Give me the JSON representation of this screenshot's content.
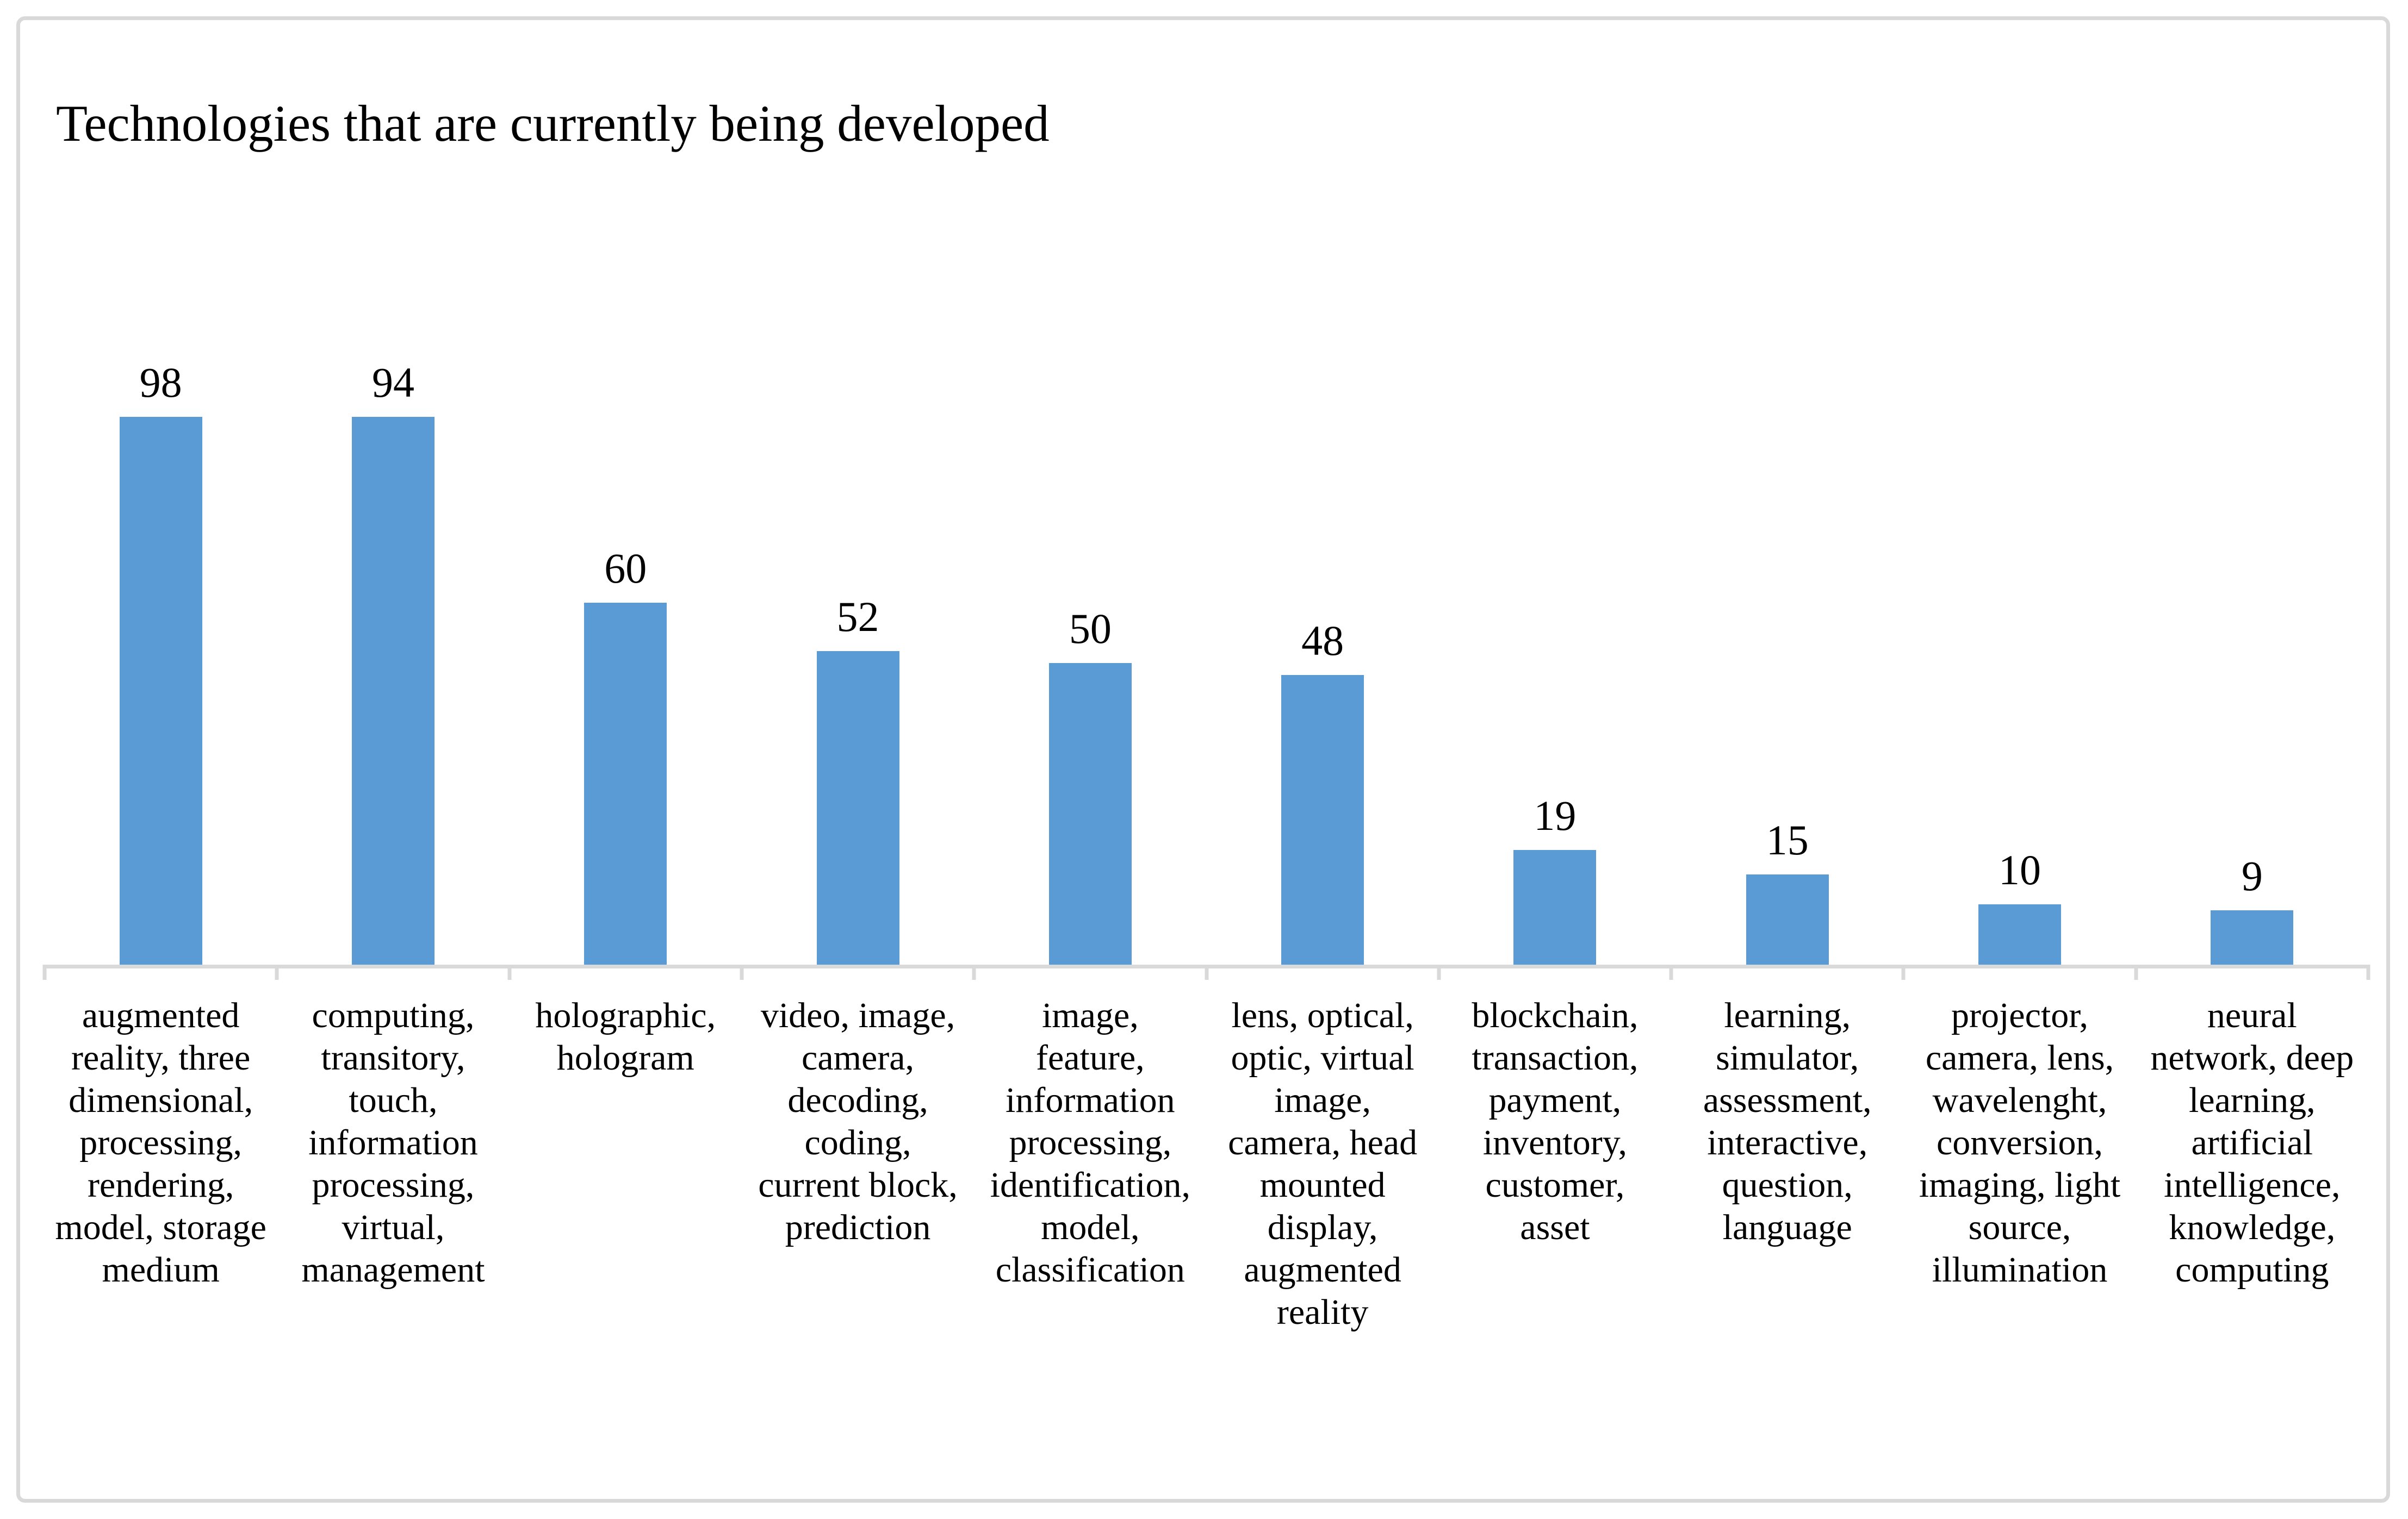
{
  "title": "Technologies that are currently being developed",
  "colors": {
    "bar": "#5B9BD5",
    "axis": "#D9D9D9",
    "frame_border": "#D9D9D9",
    "text": "#000000",
    "background": "#FFFFFF"
  },
  "chart_data": {
    "type": "bar",
    "title": "Technologies that are currently being developed",
    "values": [
      98,
      94,
      60,
      52,
      50,
      48,
      19,
      15,
      10,
      9
    ],
    "categories": [
      "augmented reality, three dimensional, processing, rendering, model, storage medium",
      "computing, transitory, touch, information processing, virtual, management",
      "holographic, hologram",
      "video, image, camera, decoding, coding, current block, prediction",
      "image, feature, information processing, identification, model, classification",
      "lens, optical, optic, virtual image, camera, head mounted display, augmented reality",
      "blockchain, transaction, payment, inventory, customer, asset",
      "learning, simulator, assessment, interactive, question, language",
      "projector, camera, lens, wavelenght, conversion, imaging, light source, illumination",
      "neural network, deep learning, artificial intelligence, knowledge, computing"
    ],
    "categories_display": [
      "augmented\nreality, three\ndimensional,\nprocessing,\nrendering,\nmodel, storage\nmedium",
      "computing,\ntransitory,\ntouch,\ninformation\nprocessing,\nvirtual,\nmanagement",
      "holographic,\nhologram",
      "video, image,\ncamera,\ndecoding,\ncoding,\ncurrent block,\nprediction",
      "image,\nfeature,\ninformation\nprocessing,\nidentification,\nmodel,\nclassification",
      "lens, optical,\noptic, virtual\nimage,\ncamera, head\nmounted\ndisplay,\naugmented\nreality",
      "blockchain,\ntransaction,\npayment,\ninventory,\ncustomer,\nasset",
      "learning,\nsimulator,\nassessment,\ninteractive,\nquestion,\nlanguage",
      "projector,\ncamera, lens,\nwavelenght,\nconversion,\nimaging, light\nsource,\nillumination",
      "neural\nnetwork, deep\nlearning,\nartificial\nintelligence,\nknowledge,\ncomputing"
    ],
    "xlabel": "",
    "ylabel": "",
    "ylim": [
      0,
      100
    ],
    "grid": false,
    "legend": false,
    "value_labels_shown": true,
    "bar_color": "#5B9BD5"
  }
}
